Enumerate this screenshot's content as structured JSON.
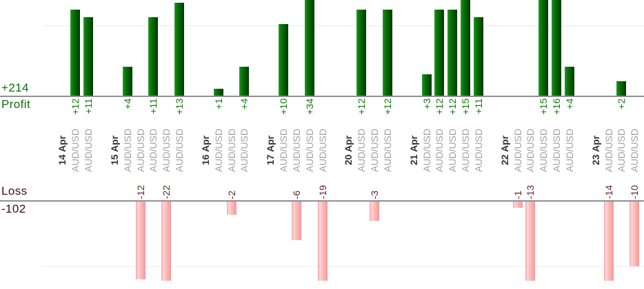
{
  "summary": {
    "profit_total": "+214",
    "profit_label": "Profit",
    "loss_label": "Loss",
    "loss_total": "-102"
  },
  "chart_data": {
    "type": "bar",
    "title": "",
    "orientation": "profit bars above top axis, loss bars below bottom axis",
    "categories": [
      "14 Apr",
      "15 Apr",
      "16 Apr",
      "17 Apr",
      "20 Apr",
      "21 Apr",
      "22 Apr",
      "23 Apr"
    ],
    "groups": [
      {
        "date": "14 Apr",
        "trades": [
          {
            "symbol": "AUD/USD",
            "value": 12,
            "label": "+12"
          },
          {
            "symbol": "AUD/USD",
            "value": 11,
            "label": "+11"
          }
        ]
      },
      {
        "date": "15 Apr",
        "trades": [
          {
            "symbol": "AUD/USD",
            "value": 4,
            "label": "+4"
          },
          {
            "symbol": "AUD/USD",
            "value": -12,
            "label": "-12"
          },
          {
            "symbol": "AUD/USD",
            "value": 11,
            "label": "+11"
          },
          {
            "symbol": "AUD/USD",
            "value": -22,
            "label": "-22"
          },
          {
            "symbol": "AUD/USD",
            "value": 13,
            "label": "+13"
          }
        ]
      },
      {
        "date": "16 Apr",
        "trades": [
          {
            "symbol": "AUD/USD",
            "value": 1,
            "label": "+1"
          },
          {
            "symbol": "AUD/USD",
            "value": -2,
            "label": "-2"
          },
          {
            "symbol": "AUD/USD",
            "value": 4,
            "label": "+4"
          }
        ]
      },
      {
        "date": "17 Apr",
        "trades": [
          {
            "symbol": "AUD/USD",
            "value": 10,
            "label": "+10"
          },
          {
            "symbol": "AUD/USD",
            "value": -6,
            "label": "-6"
          },
          {
            "symbol": "AUD/USD",
            "value": 34,
            "label": "+34"
          },
          {
            "symbol": "AUD/USD",
            "value": -19,
            "label": "-19"
          }
        ]
      },
      {
        "date": "20 Apr",
        "trades": [
          {
            "symbol": "AUD/USD",
            "value": 12,
            "label": "+12"
          },
          {
            "symbol": "AUD/USD",
            "value": -3,
            "label": "-3"
          },
          {
            "symbol": "AUD/USD",
            "value": 12,
            "label": "+12"
          }
        ]
      },
      {
        "date": "21 Apr",
        "trades": [
          {
            "symbol": "AUD/USD",
            "value": 3,
            "label": "+3"
          },
          {
            "symbol": "AUD/USD",
            "value": 12,
            "label": "+12"
          },
          {
            "symbol": "AUD/USD",
            "value": 12,
            "label": "+12"
          },
          {
            "symbol": "AUD/USD",
            "value": 15,
            "label": "+15"
          },
          {
            "symbol": "AUD/USD",
            "value": 11,
            "label": "+11"
          }
        ]
      },
      {
        "date": "22 Apr",
        "trades": [
          {
            "symbol": "AUD/USD",
            "value": -1,
            "label": "-1"
          },
          {
            "symbol": "AUD/USD",
            "value": -13,
            "label": "-13"
          },
          {
            "symbol": "AUD/USD",
            "value": 15,
            "label": "+15"
          },
          {
            "symbol": "AUD/USD",
            "value": 16,
            "label": "+16"
          },
          {
            "symbol": "AUD/USD",
            "value": 4,
            "label": "+4"
          }
        ]
      },
      {
        "date": "23 Apr",
        "trades": [
          {
            "symbol": "AUD/USD",
            "value": -14,
            "label": "-14"
          },
          {
            "symbol": "AUD/USD",
            "value": 2,
            "label": "+2"
          },
          {
            "symbol": "AUD/USD",
            "value": -10,
            "label": "-10"
          }
        ]
      }
    ],
    "totals": {
      "profit": 214,
      "loss": -102
    },
    "gridline_values": {
      "profit_axis": 10,
      "loss_axis": -10
    },
    "legend_position": "none",
    "grid": "single faint horizontal gridline per pane",
    "colors": {
      "profit_bar_green": "#0e800e",
      "profit_bar_dark": "#003a00",
      "loss_bar_pink": "#f8a2a2",
      "loss_bar_light": "#fdd6d6",
      "profit_text_green": "#0f7d0f",
      "profit_summary_green": "#0d6e0d",
      "loss_text_maroon": "#5c2727",
      "loss_summary_maroon": "#3f0d0d",
      "date_text": "#333333",
      "symbol_text": "#a0a0a0",
      "axis_gray": "#8f8f8f",
      "gridline_gray": "#ececec"
    }
  }
}
